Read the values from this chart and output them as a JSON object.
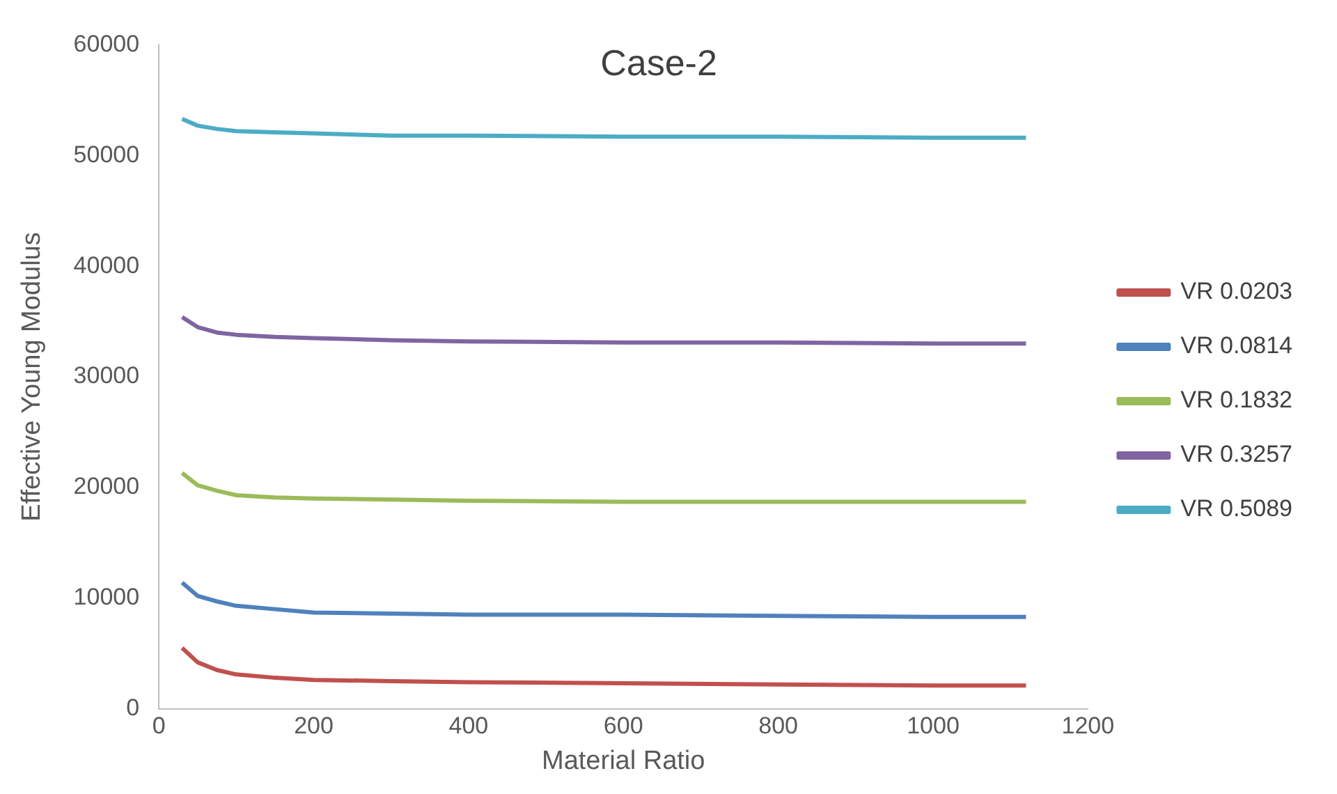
{
  "chart_data": {
    "type": "line",
    "title": "Case-2",
    "xlabel": "Material Ratio",
    "ylabel": "Effective Young Modulus",
    "x": [
      30,
      50,
      75,
      100,
      150,
      200,
      300,
      400,
      600,
      800,
      1000,
      1120
    ],
    "series": [
      {
        "name": "VR 0.0203",
        "color": "#c0504d",
        "values": [
          5500,
          4200,
          3500,
          3100,
          2800,
          2600,
          2500,
          2400,
          2300,
          2200,
          2100,
          2100
        ]
      },
      {
        "name": "VR 0.0814",
        "color": "#4f81bd",
        "values": [
          11400,
          10200,
          9700,
          9300,
          9000,
          8700,
          8600,
          8500,
          8500,
          8400,
          8300,
          8300
        ]
      },
      {
        "name": "VR 0.1832",
        "color": "#9bbb59",
        "values": [
          21300,
          20200,
          19700,
          19300,
          19100,
          19000,
          18900,
          18800,
          18700,
          18700,
          18700,
          18700
        ]
      },
      {
        "name": "VR 0.3257",
        "color": "#8064a2",
        "values": [
          35400,
          34500,
          34000,
          33800,
          33600,
          33500,
          33300,
          33200,
          33100,
          33100,
          33000,
          33000
        ]
      },
      {
        "name": "VR 0.5089",
        "color": "#4bacc6",
        "values": [
          53300,
          52700,
          52400,
          52200,
          52100,
          52000,
          51800,
          51800,
          51700,
          51700,
          51600,
          51600
        ]
      }
    ],
    "xlim": [
      0,
      1200
    ],
    "xticks": [
      0,
      200,
      400,
      600,
      800,
      1000,
      1200
    ],
    "ylim": [
      0,
      60000
    ],
    "yticks": [
      0,
      10000,
      20000,
      30000,
      40000,
      50000,
      60000
    ],
    "grid": false,
    "legend": "right",
    "marker": "none",
    "line_style": "solid"
  }
}
